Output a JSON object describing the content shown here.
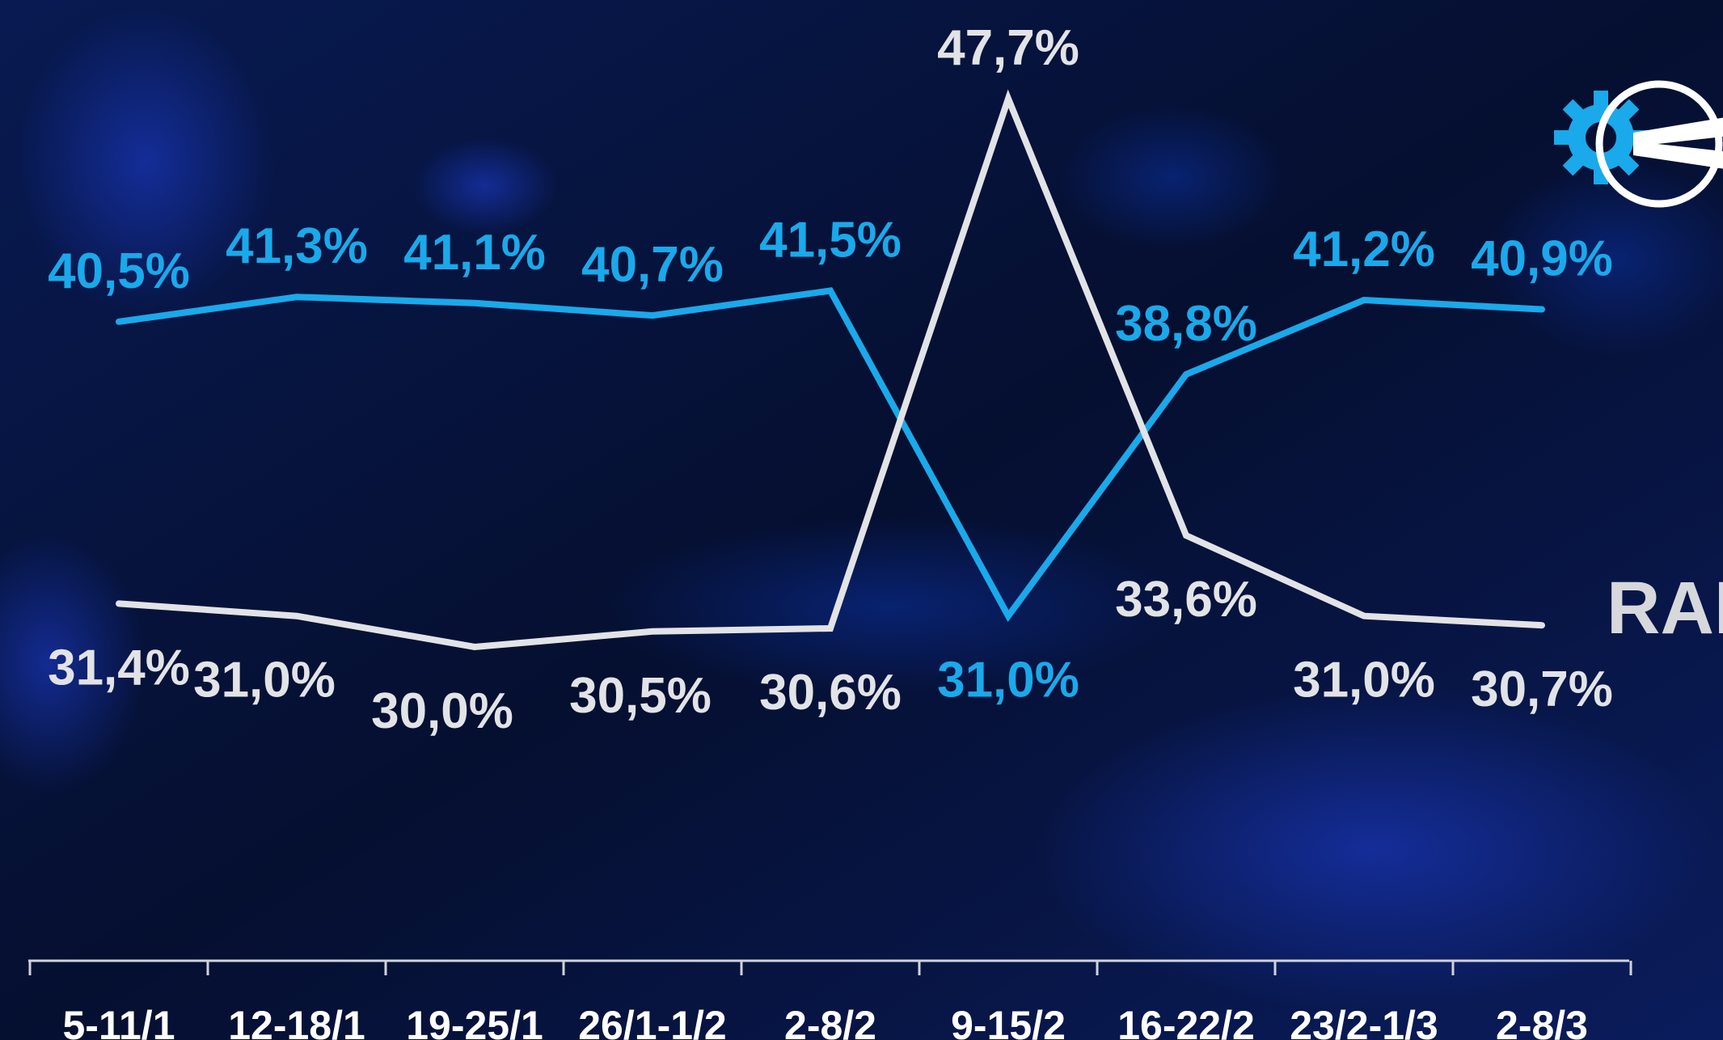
{
  "chart_data": {
    "type": "line",
    "categories": [
      "5-11/1",
      "12-18/1",
      "19-25/1",
      "26/1-1/2",
      "2-8/2",
      "9-15/2",
      "16-22/2",
      "23/2-1/3",
      "2-8/3"
    ],
    "series": [
      {
        "name": "",
        "color": "#1aa9ea",
        "values": [
          40.5,
          41.3,
          41.1,
          40.7,
          41.5,
          31.0,
          38.8,
          41.2,
          40.9
        ],
        "labels": [
          "40,5%",
          "41,3%",
          "41,1%",
          "40,7%",
          "41,5%",
          "31,0%",
          "38,8%",
          "41,2%",
          "40,9%"
        ]
      },
      {
        "name": "RAI",
        "color": "#e2e3e6",
        "values": [
          31.4,
          31.0,
          30.0,
          30.5,
          30.6,
          47.7,
          33.6,
          31.0,
          30.7
        ],
        "labels": [
          "31,4%",
          "31,0%",
          "30,0%",
          "30,5%",
          "30,6%",
          "47,7%",
          "33,6%",
          "31,0%",
          "30,7%"
        ]
      }
    ],
    "title": "",
    "xlabel": "",
    "ylabel": "",
    "grid": false,
    "legend": "right"
  },
  "decor": {
    "logo": "gear-fork-logo-icon",
    "background_colors": [
      "#061236",
      "#0a2a8a",
      "#1e3fd8"
    ]
  }
}
